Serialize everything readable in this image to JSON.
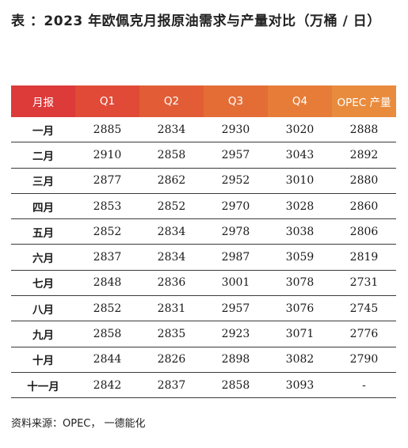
{
  "title": "表 ：2023 年欧佩克月报原油需求与产量对比（万桶 / 日）",
  "table": {
    "headers": [
      "月报",
      "Q1",
      "Q2",
      "Q3",
      "Q4",
      "OPEC 产量"
    ],
    "rows": [
      [
        "一月",
        "2885",
        "2834",
        "2930",
        "3020",
        "2888"
      ],
      [
        "二月",
        "2910",
        "2858",
        "2957",
        "3043",
        "2892"
      ],
      [
        "三月",
        "2877",
        "2862",
        "2952",
        "3010",
        "2880"
      ],
      [
        "四月",
        "2853",
        "2852",
        "2970",
        "3028",
        "2860"
      ],
      [
        "五月",
        "2852",
        "2834",
        "2978",
        "3038",
        "2806"
      ],
      [
        "六月",
        "2837",
        "2834",
        "2987",
        "3059",
        "2819"
      ],
      [
        "七月",
        "2848",
        "2836",
        "3001",
        "3078",
        "2731"
      ],
      [
        "八月",
        "2852",
        "2831",
        "2957",
        "3076",
        "2745"
      ],
      [
        "九月",
        "2858",
        "2835",
        "2923",
        "3071",
        "2776"
      ],
      [
        "十月",
        "2844",
        "2826",
        "2898",
        "3082",
        "2790"
      ],
      [
        "十一月",
        "2842",
        "2837",
        "2858",
        "3093",
        "-"
      ]
    ]
  },
  "source": "资料来源：OPEC， 一德能化"
}
